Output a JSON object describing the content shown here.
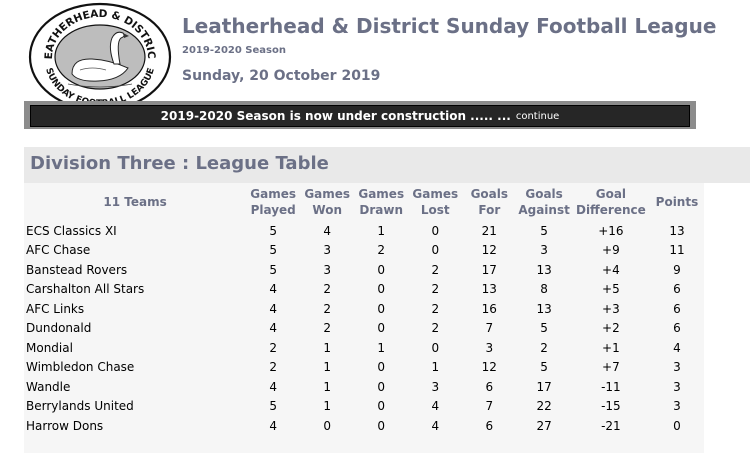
{
  "header": {
    "logo": {
      "top_text": "LEATHERHEAD & DISTRICT",
      "bottom_text": "SUNDAY FOOTBALL LEAGUE",
      "icon": "swan-icon"
    },
    "title": "Leatherhead & District Sunday Football League",
    "season": "2019-2020 Season",
    "date": "Sunday, 20 October 2019"
  },
  "banner": {
    "text": "2019-2020 Season is now under construction ..... ...",
    "link": "continue"
  },
  "division": {
    "title": "Division Three :  League Table"
  },
  "table": {
    "team_count_label": "11 Teams",
    "columns": [
      {
        "line1": "Games",
        "line2": "Played"
      },
      {
        "line1": "Games",
        "line2": "Won"
      },
      {
        "line1": "Games",
        "line2": "Drawn"
      },
      {
        "line1": "Games",
        "line2": "Lost"
      },
      {
        "line1": "Goals",
        "line2": "For"
      },
      {
        "line1": "Goals",
        "line2": "Against"
      },
      {
        "line1": "Goal",
        "line2": "Difference"
      },
      {
        "line1": "Points",
        "line2": ""
      }
    ],
    "rows": [
      {
        "team": "ECS Classics XI",
        "played": "5",
        "won": "4",
        "drawn": "1",
        "lost": "0",
        "gf": "21",
        "ga": "5",
        "gd": "+16",
        "pts": "13"
      },
      {
        "team": "AFC Chase",
        "played": "5",
        "won": "3",
        "drawn": "2",
        "lost": "0",
        "gf": "12",
        "ga": "3",
        "gd": "+9",
        "pts": "11"
      },
      {
        "team": "Banstead Rovers",
        "played": "5",
        "won": "3",
        "drawn": "0",
        "lost": "2",
        "gf": "17",
        "ga": "13",
        "gd": "+4",
        "pts": "9"
      },
      {
        "team": "Carshalton All Stars",
        "played": "4",
        "won": "2",
        "drawn": "0",
        "lost": "2",
        "gf": "13",
        "ga": "8",
        "gd": "+5",
        "pts": "6"
      },
      {
        "team": "AFC Links",
        "played": "4",
        "won": "2",
        "drawn": "0",
        "lost": "2",
        "gf": "16",
        "ga": "13",
        "gd": "+3",
        "pts": "6"
      },
      {
        "team": "Dundonald",
        "played": "4",
        "won": "2",
        "drawn": "0",
        "lost": "2",
        "gf": "7",
        "ga": "5",
        "gd": "+2",
        "pts": "6"
      },
      {
        "team": "Mondial",
        "played": "2",
        "won": "1",
        "drawn": "1",
        "lost": "0",
        "gf": "3",
        "ga": "2",
        "gd": "+1",
        "pts": "4"
      },
      {
        "team": "Wimbledon Chase",
        "played": "2",
        "won": "1",
        "drawn": "0",
        "lost": "1",
        "gf": "12",
        "ga": "5",
        "gd": "+7",
        "pts": "3"
      },
      {
        "team": "Wandle",
        "played": "4",
        "won": "1",
        "drawn": "0",
        "lost": "3",
        "gf": "6",
        "ga": "17",
        "gd": "-11",
        "pts": "3"
      },
      {
        "team": "Berrylands United",
        "played": "5",
        "won": "1",
        "drawn": "0",
        "lost": "4",
        "gf": "7",
        "ga": "22",
        "gd": "-15",
        "pts": "3"
      },
      {
        "team": "Harrow Dons",
        "played": "4",
        "won": "0",
        "drawn": "0",
        "lost": "4",
        "gf": "6",
        "ga": "27",
        "gd": "-21",
        "pts": "0"
      }
    ]
  }
}
